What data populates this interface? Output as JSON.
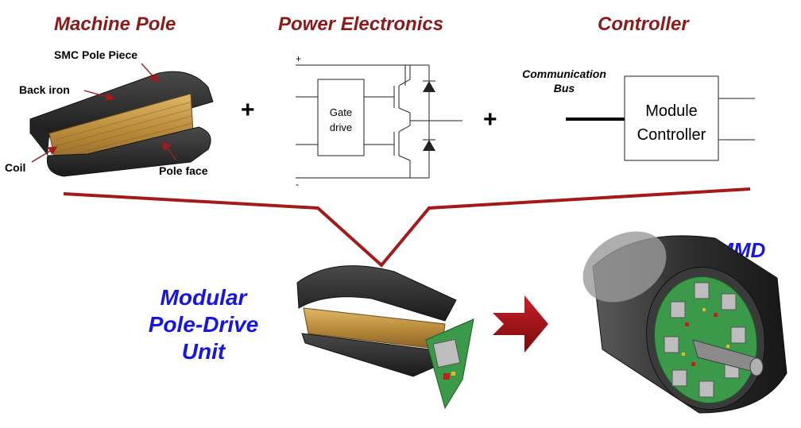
{
  "colors": {
    "heading": "#8b1a1a",
    "label_blue": "#1515e6",
    "connector": "#a31a1a",
    "arrow": "#a01010",
    "copper": "#c49a4a",
    "core": "#2b2b2b",
    "pcb": "#3a9a4a"
  },
  "sections": {
    "machine_pole": {
      "title": "Machine Pole",
      "callouts": {
        "smc": "SMC Pole Piece",
        "back_iron": "Back iron",
        "coil": "Coil",
        "pole_face": "Pole face"
      }
    },
    "power_electronics": {
      "title": "Power Electronics",
      "gate_drive_line1": "Gate",
      "gate_drive_line2": "drive",
      "plus_rail": "+",
      "minus_rail": "-"
    },
    "controller": {
      "title": "Controller",
      "bus_line1": "Communication",
      "bus_line2": "Bus",
      "module_line1": "Module",
      "module_line2": "Controller"
    }
  },
  "operators": {
    "plus1": "+",
    "plus2": "+"
  },
  "result": {
    "unit_line1": "Modular",
    "unit_line2": "Pole-Drive",
    "unit_line3": "Unit",
    "immd": "IMMD"
  }
}
